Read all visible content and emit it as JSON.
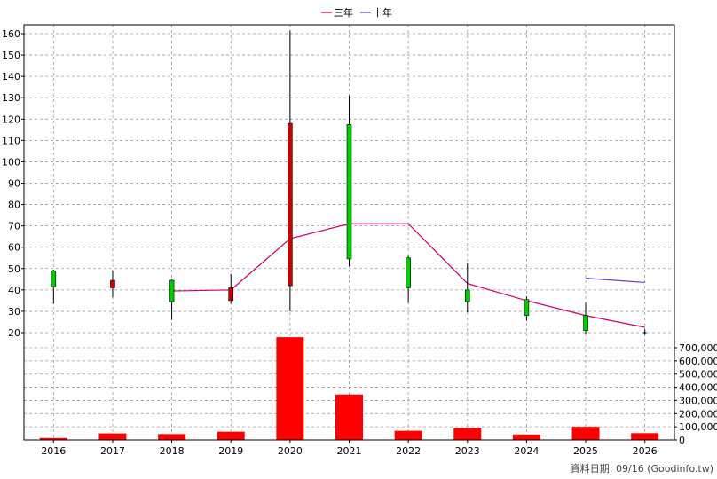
{
  "chart_data": {
    "type": "candlestick",
    "legend": {
      "placement": "top-center",
      "items": [
        {
          "name": "三年",
          "color": "#cc0066"
        },
        {
          "name": "十年",
          "color": "#6633cc"
        }
      ]
    },
    "categories": [
      "2016",
      "2017",
      "2018",
      "2019",
      "2020",
      "2021",
      "2022",
      "2023",
      "2024",
      "2025",
      "2026"
    ],
    "price_axis": {
      "ylim": [
        15,
        165
      ],
      "ticks": [
        20,
        30,
        40,
        50,
        60,
        70,
        80,
        90,
        100,
        110,
        120,
        130,
        140,
        150,
        160
      ],
      "position": "left"
    },
    "volume_axis": {
      "ylim": [
        0,
        800000
      ],
      "ticks": [
        0,
        100000,
        200000,
        300000,
        400000,
        500000,
        600000,
        700000
      ],
      "tick_labels": [
        "0",
        "100,000",
        "200,000",
        "300,000",
        "400,000",
        "500,000",
        "600,000",
        "700,000"
      ],
      "position": "right"
    },
    "candles": [
      {
        "x": "2016",
        "open": 41.5,
        "high": 49.5,
        "low": 33.5,
        "close": 49,
        "color": "#00cc00"
      },
      {
        "x": "2017",
        "open": 44.5,
        "high": 49,
        "low": 36.5,
        "close": 41,
        "color": "#cc0000"
      },
      {
        "x": "2018",
        "open": 34.5,
        "high": 45,
        "low": 26,
        "close": 44.5,
        "color": "#00cc00"
      },
      {
        "x": "2019",
        "open": 41,
        "high": 47.5,
        "low": 33.5,
        "close": 35,
        "color": "#cc0000"
      },
      {
        "x": "2020",
        "open": 118,
        "high": 161.5,
        "low": 30,
        "close": 42,
        "color": "#cc0000"
      },
      {
        "x": "2021",
        "open": 54.5,
        "high": 131,
        "low": 51,
        "close": 117.5,
        "color": "#00cc00"
      },
      {
        "x": "2022",
        "open": 41,
        "high": 56,
        "low": 34,
        "close": 55,
        "color": "#00cc00"
      },
      {
        "x": "2023",
        "open": 34.5,
        "high": 52.5,
        "low": 29.5,
        "close": 40,
        "color": "#00cc00"
      },
      {
        "x": "2024",
        "open": 28,
        "high": 37,
        "low": 25.5,
        "close": 35.5,
        "color": "#00cc00"
      },
      {
        "x": "2025",
        "open": 21,
        "high": 34,
        "low": 19.5,
        "close": 28,
        "color": "#00cc00"
      },
      {
        "x": "2026",
        "open": 20,
        "high": 21.5,
        "low": 19,
        "close": 20,
        "color": "#000000"
      }
    ],
    "series": [
      {
        "name": "三年",
        "color": "#cc0066",
        "points": [
          [
            "2018",
            39.5
          ],
          [
            "2019",
            40
          ],
          [
            "2020",
            64
          ],
          [
            "2021",
            71
          ],
          [
            "2022",
            71
          ],
          [
            "2023",
            43
          ],
          [
            "2024",
            35
          ],
          [
            "2025",
            28
          ],
          [
            "2026",
            22.5
          ]
        ]
      },
      {
        "name": "十年",
        "color": "#6633cc",
        "points": [
          [
            "2025",
            45.5
          ],
          [
            "2026",
            43.5
          ]
        ]
      }
    ],
    "volume": {
      "color": "#ff0000",
      "values": [
        15000,
        50000,
        45000,
        63000,
        780000,
        345000,
        70000,
        90000,
        42000,
        100000,
        52000
      ]
    },
    "footer_text": "資料日期: 09/16  (Goodinfo.tw)",
    "grid": true
  }
}
